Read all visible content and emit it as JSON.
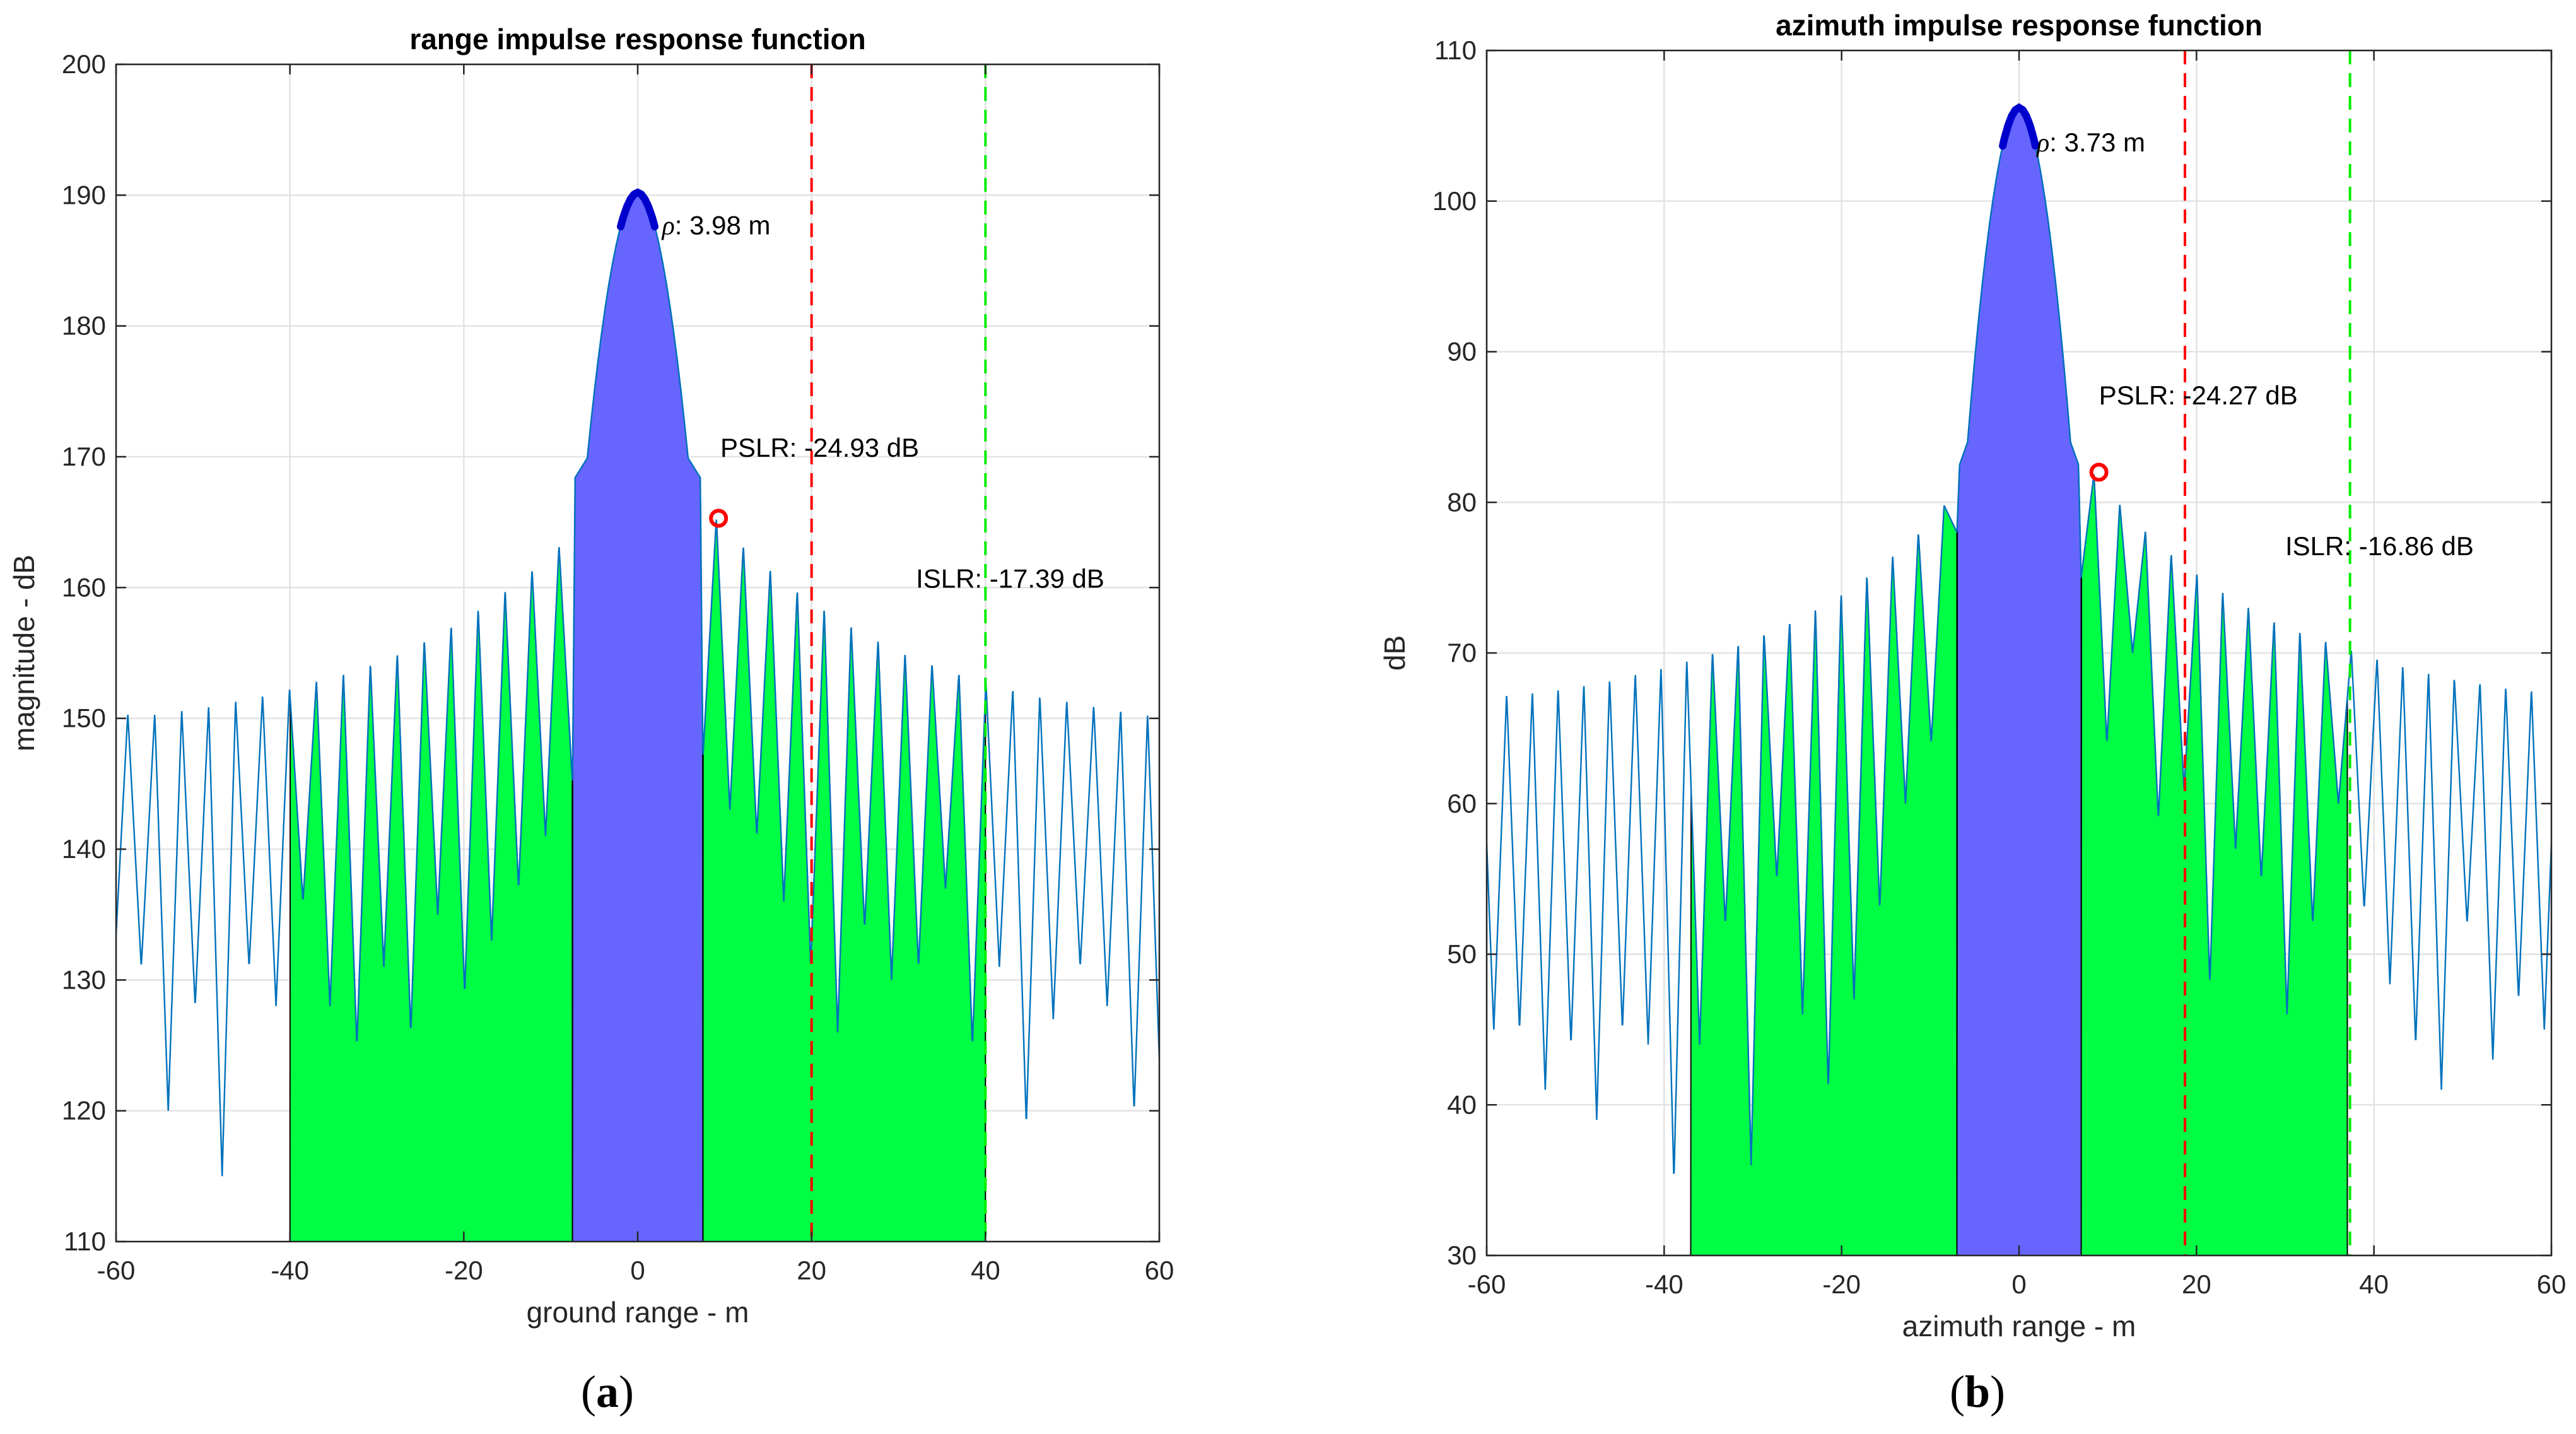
{
  "chart_data": [
    {
      "type": "line",
      "id": "a",
      "title": "range impulse response function",
      "xlabel": "ground range - m",
      "ylabel": "magnitude - dB",
      "xlim": [
        -60,
        60
      ],
      "ylim": [
        110,
        200
      ],
      "xticks": [
        -60,
        -40,
        -20,
        0,
        20,
        40,
        60
      ],
      "yticks": [
        110,
        120,
        130,
        140,
        150,
        160,
        170,
        180,
        190,
        200
      ],
      "grid": true,
      "peak_db": 190.2,
      "shoulder_db": 169.9,
      "mainlobe_limits": [
        -7.5,
        7.5
      ],
      "sidelobe_period": 3.1,
      "sidelobe_peaks_right": [
        165.3,
        163.2,
        161.4,
        159.8,
        158.4,
        157.1,
        156.0,
        155.0,
        154.2,
        153.5,
        152.9,
        152.3,
        151.8,
        151.4,
        151.0,
        150.7,
        150.4
      ],
      "sidelobe_peaks_left": [
        165.2,
        163.2,
        161.4,
        159.8,
        158.4,
        157.1,
        156.0,
        155.0,
        154.2,
        153.5,
        152.9,
        152.3,
        151.8,
        151.4,
        151.0,
        150.7,
        150.4
      ],
      "sidelobe_nulls_right": [
        147,
        143,
        141,
        136,
        131,
        126,
        134,
        130,
        131,
        137,
        125,
        131,
        119,
        127,
        131,
        128,
        120
      ],
      "sidelobe_nulls_left": [
        145,
        141,
        137,
        133,
        129,
        135,
        126,
        131,
        125,
        128,
        136,
        128,
        131,
        115,
        128,
        120,
        131
      ],
      "isl_region": [
        -40,
        40
      ],
      "pslr_marker": {
        "x": 9.3,
        "y": 165.3
      },
      "pslr_line_x": 20,
      "islr_line_x": 40,
      "resolution_band": [
        -1.99,
        1.99
      ],
      "annotations": {
        "rho": {
          "prefix": "ρ",
          "text": ": 3.98 m",
          "x": 2.8,
          "y": 187.0
        },
        "pslr": {
          "text": "PSLR: -24.93 dB",
          "x": 9.5,
          "y": 170.0
        },
        "islr": {
          "text": "ISLR: -17.39 dB",
          "x": 32.0,
          "y": 160.0
        }
      },
      "panel_label": {
        "open": "(",
        "letter": "a",
        "close": ")"
      }
    },
    {
      "type": "line",
      "id": "b",
      "title": "azimuth impulse response function",
      "xlabel": "azimuth range - m",
      "ylabel": "dB",
      "xlim": [
        -60,
        60
      ],
      "ylim": [
        30,
        110
      ],
      "xticks": [
        -60,
        -40,
        -20,
        0,
        20,
        40,
        60
      ],
      "yticks": [
        30,
        40,
        50,
        60,
        70,
        80,
        90,
        100,
        110
      ],
      "grid": true,
      "peak_db": 106.2,
      "shoulder_db": 84.0,
      "mainlobe_limits": [
        -7.0,
        7.0
      ],
      "sidelobe_period": 2.9,
      "sidelobe_peaks_right": [
        81.9,
        79.9,
        78.1,
        76.6,
        75.3,
        74.1,
        73.1,
        72.2,
        71.5,
        70.8,
        70.2,
        69.7,
        69.2,
        68.8,
        68.4,
        68.1,
        67.8,
        67.6,
        67.4
      ],
      "sidelobe_peaks_left": [
        81.8,
        79.8,
        78.0,
        76.5,
        75.2,
        74.0,
        73.0,
        72.1,
        71.4,
        70.7,
        70.1,
        69.6,
        69.1,
        68.7,
        68.3,
        68.0,
        67.7,
        67.5,
        67.3
      ],
      "sidelobe_nulls_right": [
        75,
        64,
        70,
        59,
        61,
        48,
        57,
        55,
        46,
        52,
        60,
        53,
        48,
        44,
        41,
        52,
        43,
        47,
        45
      ],
      "sidelobe_nulls_left": [
        78,
        64,
        60,
        53,
        47,
        41,
        46,
        55,
        36,
        52,
        44,
        35,
        44,
        45,
        39,
        44,
        41,
        45,
        45
      ],
      "isl_region": [
        -37,
        37
      ],
      "pslr_marker": {
        "x": 9.0,
        "y": 82.0
      },
      "pslr_line_x": 18.7,
      "islr_line_x": 37.3,
      "resolution_band": [
        -1.87,
        1.87
      ],
      "annotations": {
        "rho": {
          "prefix": "ρ",
          "text": ": 3.73 m",
          "x": 2.0,
          "y": 103.3
        },
        "pslr": {
          "text": "PSLR: -24.27 dB",
          "x": 9.0,
          "y": 86.5
        },
        "islr": {
          "text": "ISLR: -16.86 dB",
          "x": 30.0,
          "y": 76.5
        }
      },
      "panel_label": {
        "open": "(",
        "letter": "b",
        "close": ")"
      }
    }
  ],
  "colors": {
    "mainlobe_fill": "#6666ff",
    "sidelobe_fill": "#00ff44",
    "curve": "#0072bd",
    "outline": "#000000",
    "pslr_line": "#ff0000",
    "islr_line": "#00ee00",
    "marker": "#ff0000",
    "resolution_band": "#0000cc",
    "grid": "#e3e3e3",
    "axes": "#262626"
  }
}
